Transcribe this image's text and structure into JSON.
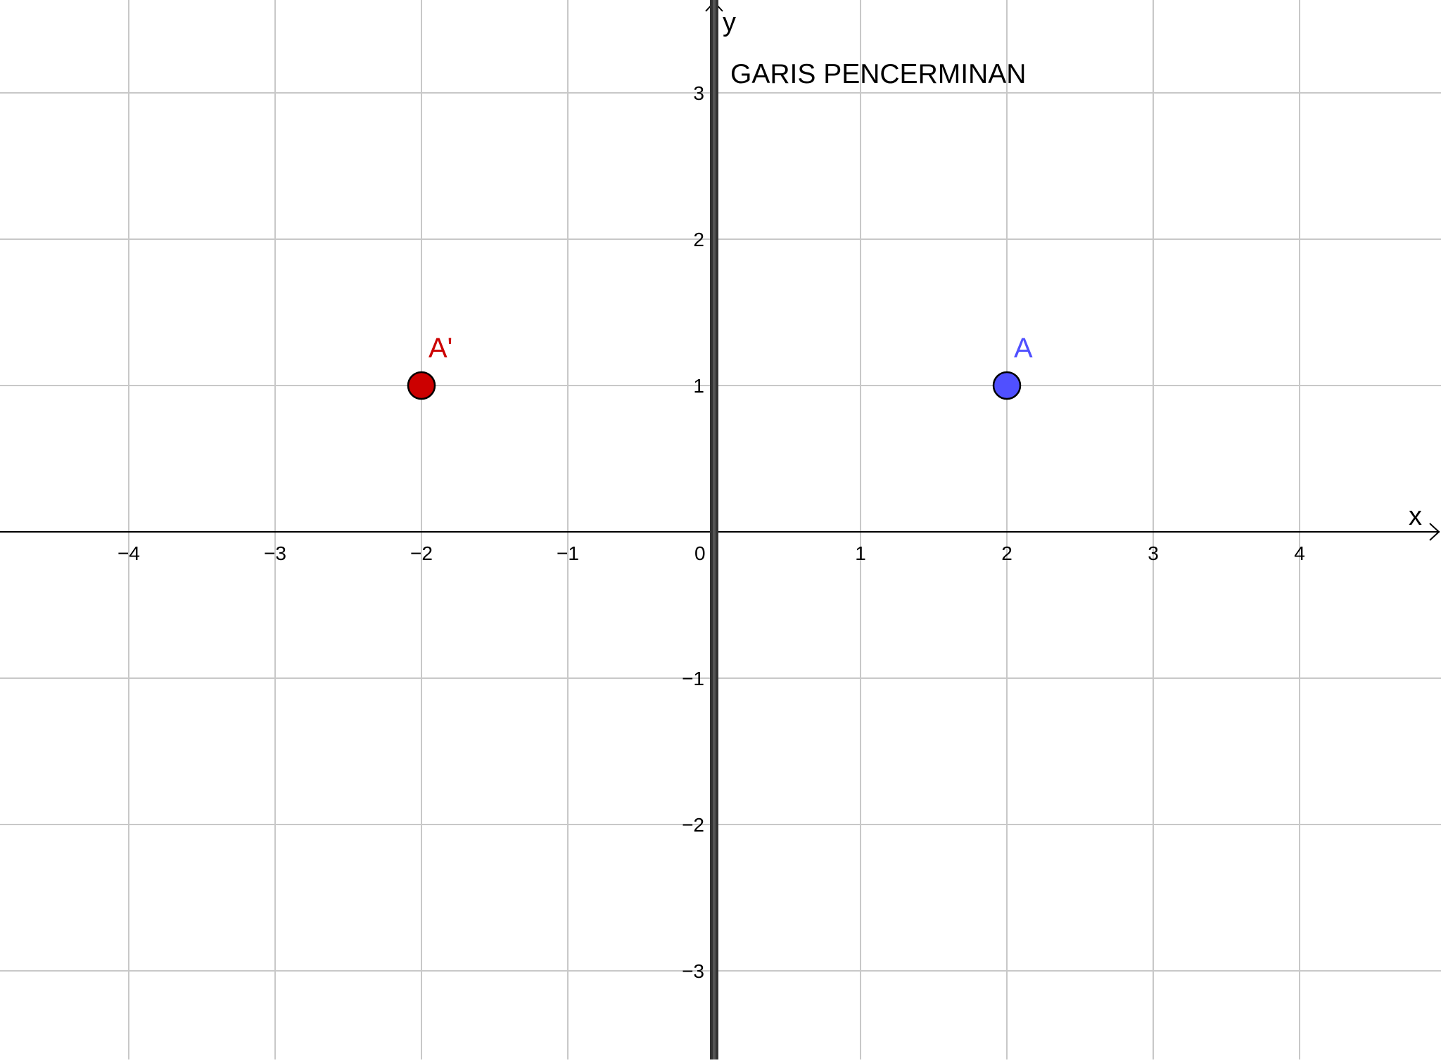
{
  "axes": {
    "x_label": "x",
    "y_label": "y",
    "x_range": [
      -4.9,
      4.9
    ],
    "y_range": [
      -3.6,
      3.6
    ],
    "x_ticks": [
      -4,
      -3,
      -2,
      -1,
      1,
      2,
      3,
      4
    ],
    "y_ticks": [
      -3,
      -2,
      -1,
      1,
      2,
      3
    ],
    "origin_label": "0",
    "grid": true
  },
  "reflection_line": {
    "label": "GARIS PENCERMINAN",
    "equation": "x = 0",
    "color": "#333333"
  },
  "points": [
    {
      "name": "A",
      "x": 2,
      "y": 1,
      "color": "#5050ff"
    },
    {
      "name": "A'",
      "x": -2,
      "y": 1,
      "color": "#cc0000"
    }
  ],
  "colors": {
    "grid": "#c8c8c8",
    "axis": "#000000",
    "text": "#000000"
  }
}
